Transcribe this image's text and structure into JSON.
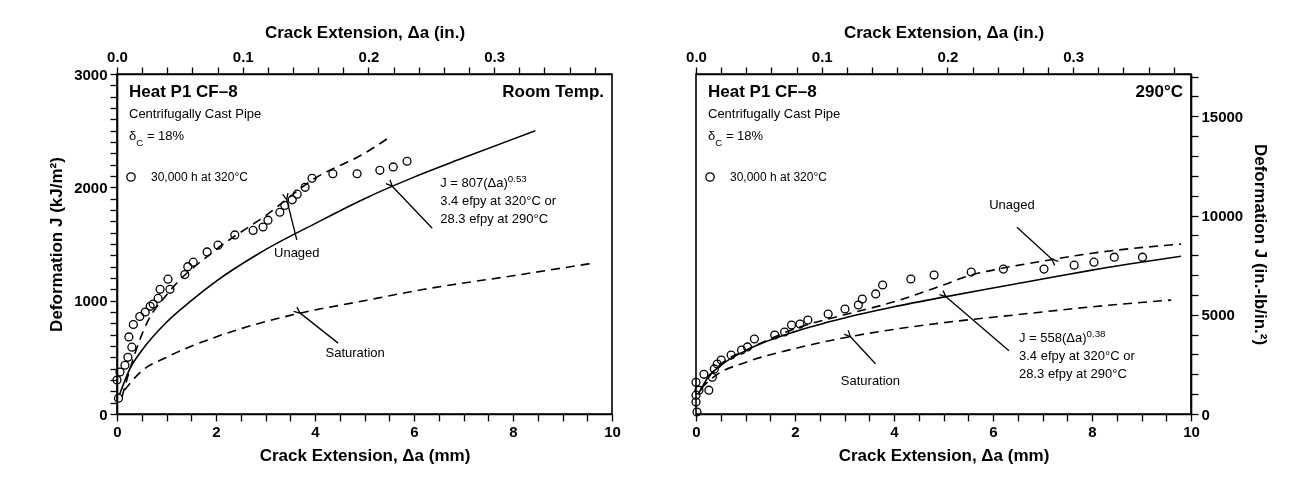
{
  "chart_data": [
    {
      "type": "scatter",
      "xlabel": "Crack Extension, Δa (mm)",
      "ylabel": "Deformation J (kJ/m²)",
      "x2label": "Crack Extension, Δa (in.)",
      "xlim": [
        0,
        10
      ],
      "ylim": [
        0,
        3000
      ],
      "x2lim": [
        0,
        0.3937
      ],
      "xticks": [
        0,
        {
          "value": 0.5,
          "label": null
        },
        {
          "value": 1,
          "label": null
        },
        {
          "value": 1.5,
          "label": null
        },
        2,
        {
          "value": 2.5,
          "label": null
        },
        {
          "value": 3,
          "label": null
        },
        {
          "value": 3.5,
          "label": null
        },
        4,
        {
          "value": 4.5,
          "label": null
        },
        {
          "value": 5,
          "label": null
        },
        {
          "value": 5.5,
          "label": null
        },
        6,
        {
          "value": 6.5,
          "label": null
        },
        {
          "value": 7,
          "label": null
        },
        {
          "value": 7.5,
          "label": null
        },
        8,
        {
          "value": 8.5,
          "label": null
        },
        {
          "value": 9,
          "label": null
        },
        {
          "value": 9.5,
          "label": null
        },
        10
      ],
      "yticks": [
        0,
        {
          "value": 100,
          "label": null
        },
        {
          "value": 200,
          "label": null
        },
        {
          "value": 300,
          "label": null
        },
        {
          "value": 400,
          "label": null
        },
        {
          "value": 500,
          "label": null
        },
        {
          "value": 600,
          "label": null
        },
        {
          "value": 700,
          "label": null
        },
        {
          "value": 800,
          "label": null
        },
        {
          "value": 900,
          "label": null
        },
        1000,
        {
          "value": 1100,
          "label": null
        },
        {
          "value": 1200,
          "label": null
        },
        {
          "value": 1300,
          "label": null
        },
        {
          "value": 1400,
          "label": null
        },
        {
          "value": 1500,
          "label": null
        },
        {
          "value": 1600,
          "label": null
        },
        {
          "value": 1700,
          "label": null
        },
        {
          "value": 1800,
          "label": null
        },
        {
          "value": 1900,
          "label": null
        },
        2000,
        {
          "value": 2100,
          "label": null
        },
        {
          "value": 2200,
          "label": null
        },
        {
          "value": 2300,
          "label": null
        },
        {
          "value": 2400,
          "label": null
        },
        {
          "value": 2500,
          "label": null
        },
        {
          "value": 2600,
          "label": null
        },
        {
          "value": 2700,
          "label": null
        },
        {
          "value": 2800,
          "label": null
        },
        {
          "value": 2900,
          "label": null
        },
        3000
      ],
      "x2ticks": [
        {
          "value": 0,
          "label": "0.0"
        },
        {
          "value": 0.02,
          "label": null
        },
        {
          "value": 0.04,
          "label": null
        },
        {
          "value": 0.06,
          "label": null
        },
        {
          "value": 0.08,
          "label": null
        },
        {
          "value": 0.1,
          "label": "0.1"
        },
        {
          "value": 0.12,
          "label": null
        },
        {
          "value": 0.14,
          "label": null
        },
        {
          "value": 0.16,
          "label": null
        },
        {
          "value": 0.18,
          "label": null
        },
        {
          "value": 0.2,
          "label": "0.2"
        },
        {
          "value": 0.22,
          "label": null
        },
        {
          "value": 0.24,
          "label": null
        },
        {
          "value": 0.26,
          "label": null
        },
        {
          "value": 0.28,
          "label": null
        },
        {
          "value": 0.3,
          "label": "0.3"
        },
        {
          "value": 0.32,
          "label": null
        },
        {
          "value": 0.34,
          "label": null
        },
        {
          "value": 0.36,
          "label": null
        },
        {
          "value": 0.38,
          "label": null
        }
      ],
      "legend": "top left",
      "series": [
        {
          "name": "30,000 h at 320°C",
          "marker": "circle",
          "color": "#000000",
          "x": [
            0.03,
            0,
            0.06,
            0.16,
            0.22,
            0.3,
            0.24,
            0.33,
            0.46,
            0.57,
            0.67,
            0.73,
            0.83,
            0.87,
            1.03,
            1.07,
            1.37,
            1.43,
            1.54,
            1.82,
            2.04,
            2.38,
            2.75,
            2.95,
            3.05,
            3.29,
            3.39,
            3.54,
            3.64,
            3.8,
            3.94,
            4.36,
            4.85,
            5.31,
            5.58,
            5.86
          ],
          "values": [
            140,
            300,
            370,
            430,
            500,
            590,
            680,
            790,
            860,
            900,
            950,
            970,
            1020,
            1100,
            1190,
            1100,
            1230,
            1300,
            1340,
            1430,
            1490,
            1580,
            1620,
            1650,
            1710,
            1780,
            1840,
            1890,
            1940,
            2000,
            2080,
            2120,
            2120,
            2150,
            2180,
            2230
          ]
        },
        {
          "type": "line",
          "color": "#000000",
          "line_style": "solid",
          "x": [
            0.05,
            0.25,
            0.5,
            1,
            1.5,
            2,
            3,
            4,
            5,
            6,
            7,
            8.45
          ],
          "values": [
            170,
            390,
            560,
            810,
            1000,
            1170,
            1450,
            1680,
            1900,
            2090,
            2260,
            2500
          ]
        },
        {
          "type": "line",
          "color": "#000000",
          "line_style": "dashed",
          "x": [
            0.1,
            0.3,
            0.6,
            1,
            2,
            3,
            4,
            5,
            5.5
          ],
          "values": [
            150,
            450,
            800,
            1050,
            1450,
            1750,
            2080,
            2300,
            2440
          ]
        },
        {
          "type": "line",
          "color": "#000000",
          "line_style": "dashed",
          "x": [
            0.15,
            0.5,
            1,
            2,
            3.5,
            5,
            6.2,
            8,
            9.6
          ],
          "values": [
            210,
            380,
            500,
            680,
            870,
            1000,
            1100,
            1220,
            1330
          ]
        }
      ],
      "annotations": [
        "Heat P1  CF–8",
        "Centrifugally Cast Pipe",
        "δ$_{C}$ = 18%",
        "Room Temp.",
        {
          "text": "Unaged",
          "x": 3.43,
          "y": 1890
        },
        {
          "text": "Saturation",
          "x": 3.7,
          "y": 890
        },
        {
          "text": "J = 807(Δa)$^{0.53}$\n3.4 efpy at 320°C or\n28.3 efpy at 290°C",
          "x": 5.56,
          "y": 2010
        }
      ]
    },
    {
      "type": "scatter",
      "xlabel": "Crack Extension, Δa (mm)",
      "ylabel": "Deformation J (in.-lb/in.²)",
      "x2label": "Crack Extension, Δa (in.)",
      "xlim": [
        0,
        10
      ],
      "ylim": [
        0,
        17130
      ],
      "x2lim": [
        0,
        0.3937
      ],
      "xticks": [
        0,
        {
          "value": 0.5,
          "label": null
        },
        {
          "value": 1,
          "label": null
        },
        {
          "value": 1.5,
          "label": null
        },
        2,
        {
          "value": 2.5,
          "label": null
        },
        {
          "value": 3,
          "label": null
        },
        {
          "value": 3.5,
          "label": null
        },
        4,
        {
          "value": 4.5,
          "label": null
        },
        {
          "value": 5,
          "label": null
        },
        {
          "value": 5.5,
          "label": null
        },
        6,
        {
          "value": 6.5,
          "label": null
        },
        {
          "value": 7,
          "label": null
        },
        {
          "value": 7.5,
          "label": null
        },
        8,
        {
          "value": 8.5,
          "label": null
        },
        {
          "value": 9,
          "label": null
        },
        {
          "value": 9.5,
          "label": null
        },
        10
      ],
      "yticks": [
        0,
        {
          "value": 1000,
          "label": null
        },
        {
          "value": 2000,
          "label": null
        },
        {
          "value": 3000,
          "label": null
        },
        {
          "value": 4000,
          "label": null
        },
        5000,
        {
          "value": 6000,
          "label": null
        },
        {
          "value": 7000,
          "label": null
        },
        {
          "value": 8000,
          "label": null
        },
        {
          "value": 9000,
          "label": null
        },
        10000,
        {
          "value": 11000,
          "label": null
        },
        {
          "value": 12000,
          "label": null
        },
        {
          "value": 13000,
          "label": null
        },
        {
          "value": 14000,
          "label": null
        },
        15000,
        {
          "value": 16000,
          "label": null
        },
        {
          "value": 17000,
          "label": null
        }
      ],
      "x2ticks": [
        {
          "value": 0,
          "label": "0.0"
        },
        {
          "value": 0.02,
          "label": null
        },
        {
          "value": 0.04,
          "label": null
        },
        {
          "value": 0.06,
          "label": null
        },
        {
          "value": 0.08,
          "label": null
        },
        {
          "value": 0.1,
          "label": "0.1"
        },
        {
          "value": 0.12,
          "label": null
        },
        {
          "value": 0.14,
          "label": null
        },
        {
          "value": 0.16,
          "label": null
        },
        {
          "value": 0.18,
          "label": null
        },
        {
          "value": 0.2,
          "label": "0.2"
        },
        {
          "value": 0.22,
          "label": null
        },
        {
          "value": 0.24,
          "label": null
        },
        {
          "value": 0.26,
          "label": null
        },
        {
          "value": 0.28,
          "label": null
        },
        {
          "value": 0.3,
          "label": "0.3"
        },
        {
          "value": 0.32,
          "label": null
        },
        {
          "value": 0.34,
          "label": null
        },
        {
          "value": 0.36,
          "label": null
        },
        {
          "value": 0.38,
          "label": null
        }
      ],
      "legend": "top left",
      "series": [
        {
          "name": "30,000 h at 320°C",
          "marker": "circle",
          "color": "#000000",
          "x": [
            0.02,
            0,
            0,
            0.06,
            0.26,
            0,
            0.16,
            0.33,
            0.37,
            0.43,
            0.51,
            0.71,
            0.92,
            1.04,
            1.18,
            1.59,
            1.79,
            1.93,
            2.1,
            2.26,
            2.67,
            3.01,
            3.28,
            3.36,
            3.63,
            3.77,
            4.34,
            4.81,
            5.56,
            6.21,
            7.03,
            7.64,
            8.04,
            8.45,
            9.02
          ],
          "values": [
            100,
            600,
            950,
            1200,
            1200,
            1600,
            2000,
            1850,
            2270,
            2520,
            2720,
            2970,
            3220,
            3380,
            3780,
            3980,
            4130,
            4480,
            4530,
            4730,
            5040,
            5290,
            5490,
            5790,
            6050,
            6500,
            6800,
            7000,
            7150,
            7300,
            7300,
            7500,
            7650,
            7900,
            7900
          ]
        },
        {
          "type": "line",
          "color": "#000000",
          "line_style": "solid",
          "x": [
            0.05,
            0.25,
            0.5,
            1,
            2,
            3,
            4,
            5,
            6,
            7,
            8,
            9.8
          ],
          "values": [
            1020,
            1880,
            2450,
            3190,
            4150,
            4840,
            5400,
            5890,
            6350,
            6800,
            7250,
            7950
          ]
        },
        {
          "type": "line",
          "color": "#000000",
          "line_style": "dashed",
          "x": [
            0.1,
            0.3,
            0.6,
            1,
            2,
            3,
            4,
            5,
            5.56,
            6,
            7,
            8,
            9.8
          ],
          "values": [
            1200,
            2000,
            2700,
            3200,
            4300,
            5000,
            5650,
            6500,
            7000,
            7250,
            7700,
            8100,
            8560
          ]
        },
        {
          "type": "line",
          "color": "#000000",
          "line_style": "dashed",
          "x": [
            0.1,
            0.43,
            1,
            2,
            3.08,
            5,
            6.44,
            8,
            9.6
          ],
          "values": [
            1300,
            2000,
            2600,
            3300,
            3880,
            4600,
            4990,
            5400,
            5740
          ]
        }
      ],
      "annotations": [
        "Heat P1  CF–8",
        "Centrifugally Cast Pipe",
        "δ$_{C}$ = 18%",
        "290°C",
        {
          "text": "Unaged",
          "x": 7.19,
          "y": 7800
        },
        {
          "text": "Saturation",
          "x": 3.12,
          "y": 3890
        },
        {
          "text": "J = 558(Δa)$^{0.38}$\n3.4 efpy at 320°C or\n28.3 efpy at 290°C",
          "x": 5.05,
          "y": 5910
        }
      ]
    }
  ]
}
